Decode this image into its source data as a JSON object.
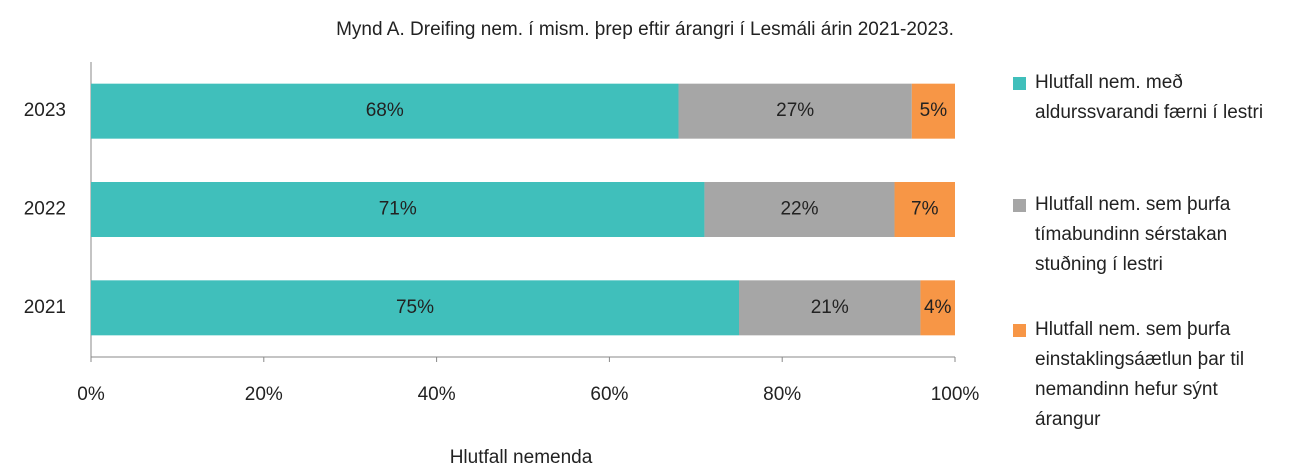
{
  "chart_data": {
    "type": "stacked-bar-horizontal",
    "title": "Mynd A. Dreifing  nem. í mism. þrep eftir árangri í Lesmáli árin 2021-2023.",
    "x_label": "Hlutfall nemenda",
    "categories": [
      "2023",
      "2022",
      "2021"
    ],
    "series": [
      {
        "name": "Hlutfall nem. með aldurssvarandi færni í lestri",
        "color": "#40bfbb",
        "values": [
          68,
          71,
          75
        ],
        "value_labels": [
          "68%",
          "71%",
          "75%"
        ]
      },
      {
        "name": "Hlutfall nem. sem þurfa tímabundinn sérstakan stuðning í lestri",
        "color": "#a6a6a6",
        "values": [
          27,
          22,
          21
        ],
        "value_labels": [
          "27%",
          "22%",
          "21%"
        ]
      },
      {
        "name": "Hlutfall nem. sem þurfa einstaklingsáætlun þar til nemandinn hefur sýnt árangur",
        "color": "#f79646",
        "values": [
          5,
          7,
          4
        ],
        "value_labels": [
          "5%",
          "7%",
          "4%"
        ]
      }
    ],
    "xlim": [
      0,
      100
    ],
    "xticks": [
      {
        "value": 0,
        "label": "0%"
      },
      {
        "value": 20,
        "label": "20%"
      },
      {
        "value": 40,
        "label": "40%"
      },
      {
        "value": 60,
        "label": "60%"
      },
      {
        "value": 80,
        "label": "80%"
      },
      {
        "value": 100,
        "label": "100%"
      }
    ],
    "legend": "right"
  }
}
